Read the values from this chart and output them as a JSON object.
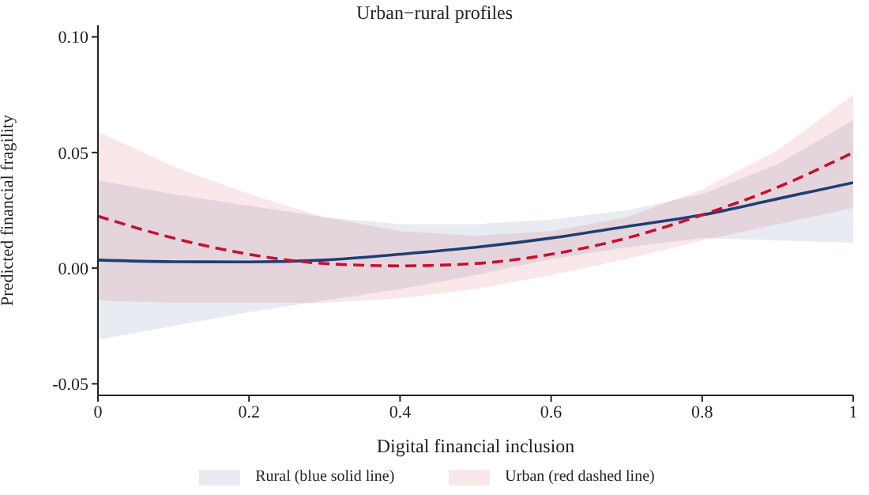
{
  "chart_data": {
    "type": "line",
    "title": "Urban−rural profiles",
    "xlabel": "Digital financial inclusion",
    "ylabel": "Predicted financial fragility",
    "x": [
      0,
      0.1,
      0.2,
      0.3,
      0.4,
      0.5,
      0.6,
      0.7,
      0.8,
      0.9,
      1
    ],
    "series": [
      {
        "name": "Rural (blue solid line)",
        "color": "#1f3f73",
        "line_style": "solid",
        "values": [
          0.0035,
          0.0028,
          0.0027,
          0.0035,
          0.006,
          0.009,
          0.013,
          0.018,
          0.023,
          0.03,
          0.037
        ],
        "lower": [
          -0.031,
          -0.025,
          -0.019,
          -0.014,
          -0.009,
          -0.003,
          0.004,
          0.009,
          0.013,
          0.012,
          0.011
        ],
        "upper": [
          0.038,
          0.032,
          0.027,
          0.022,
          0.019,
          0.019,
          0.021,
          0.025,
          0.032,
          0.045,
          0.064
        ]
      },
      {
        "name": "Urban (red dashed line)",
        "color": "#c8102e",
        "line_style": "dashed",
        "values": [
          0.0225,
          0.013,
          0.006,
          0.002,
          0.001,
          0.002,
          0.006,
          0.013,
          0.023,
          0.035,
          0.05
        ],
        "lower": [
          -0.014,
          -0.015,
          -0.015,
          -0.015,
          -0.013,
          -0.009,
          -0.003,
          0.004,
          0.012,
          0.019,
          0.026
        ],
        "upper": [
          0.059,
          0.044,
          0.032,
          0.022,
          0.016,
          0.014,
          0.016,
          0.022,
          0.034,
          0.051,
          0.075
        ]
      }
    ],
    "xlim": [
      0,
      1
    ],
    "xticks": [
      0,
      0.2,
      0.4,
      0.6,
      0.8,
      1
    ],
    "ylim": [
      -0.055,
      0.105
    ],
    "yticks": [
      {
        "value": -0.05,
        "label": "-0.05"
      },
      {
        "value": 0,
        "label": "0.00"
      },
      {
        "value": 0.05,
        "label": "0.05"
      },
      {
        "value": 0.1,
        "label": "0.10"
      }
    ],
    "grid": false,
    "legend": "bottom",
    "marker": "none"
  }
}
